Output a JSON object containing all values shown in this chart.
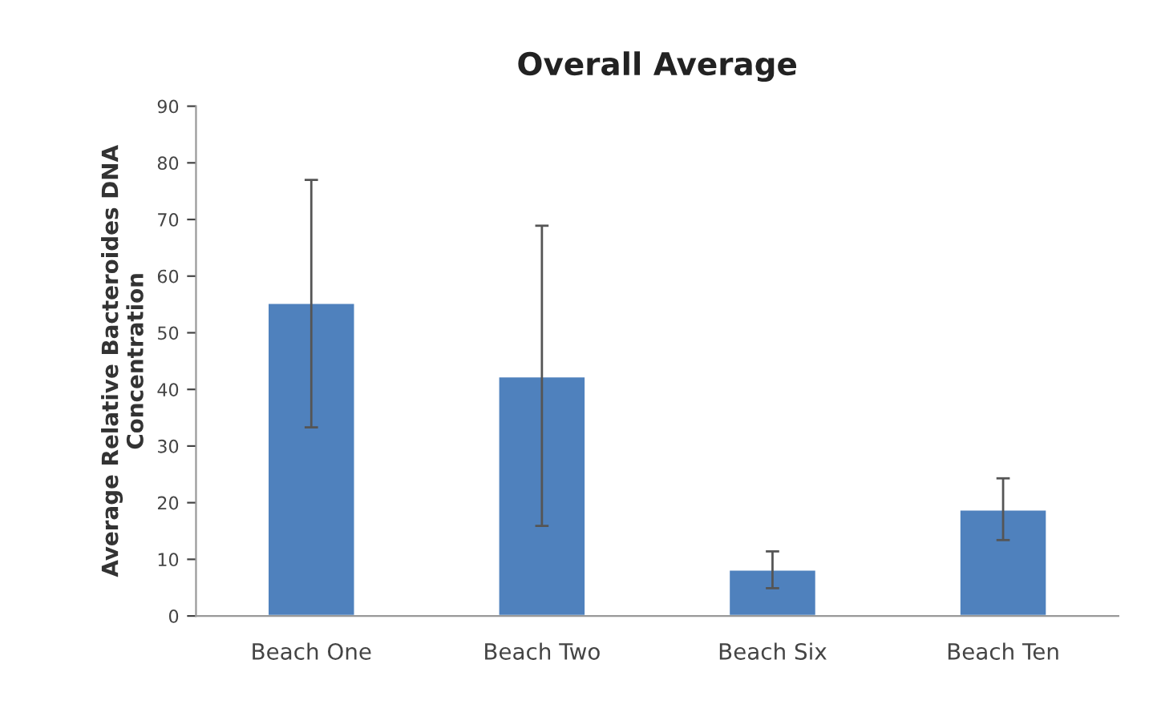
{
  "chart_data": {
    "type": "bar",
    "title": "Overall Average",
    "ylabel": "Average Relative Bacteroides DNA\nConcentration",
    "categories": [
      "Beach One",
      "Beach Two",
      "Beach Six",
      "Beach Ten"
    ],
    "values": [
      55.3,
      42.3,
      8.2,
      18.8
    ],
    "errors": [
      [
        33.3,
        77.0
      ],
      [
        15.9,
        68.9
      ],
      [
        4.9,
        11.4
      ],
      [
        13.4,
        24.3
      ]
    ],
    "color": "#4f81bd",
    "ylim": [
      0,
      90
    ],
    "yticks": [
      0,
      10,
      20,
      30,
      40,
      50,
      60,
      70,
      80,
      90
    ],
    "grid": false
  }
}
